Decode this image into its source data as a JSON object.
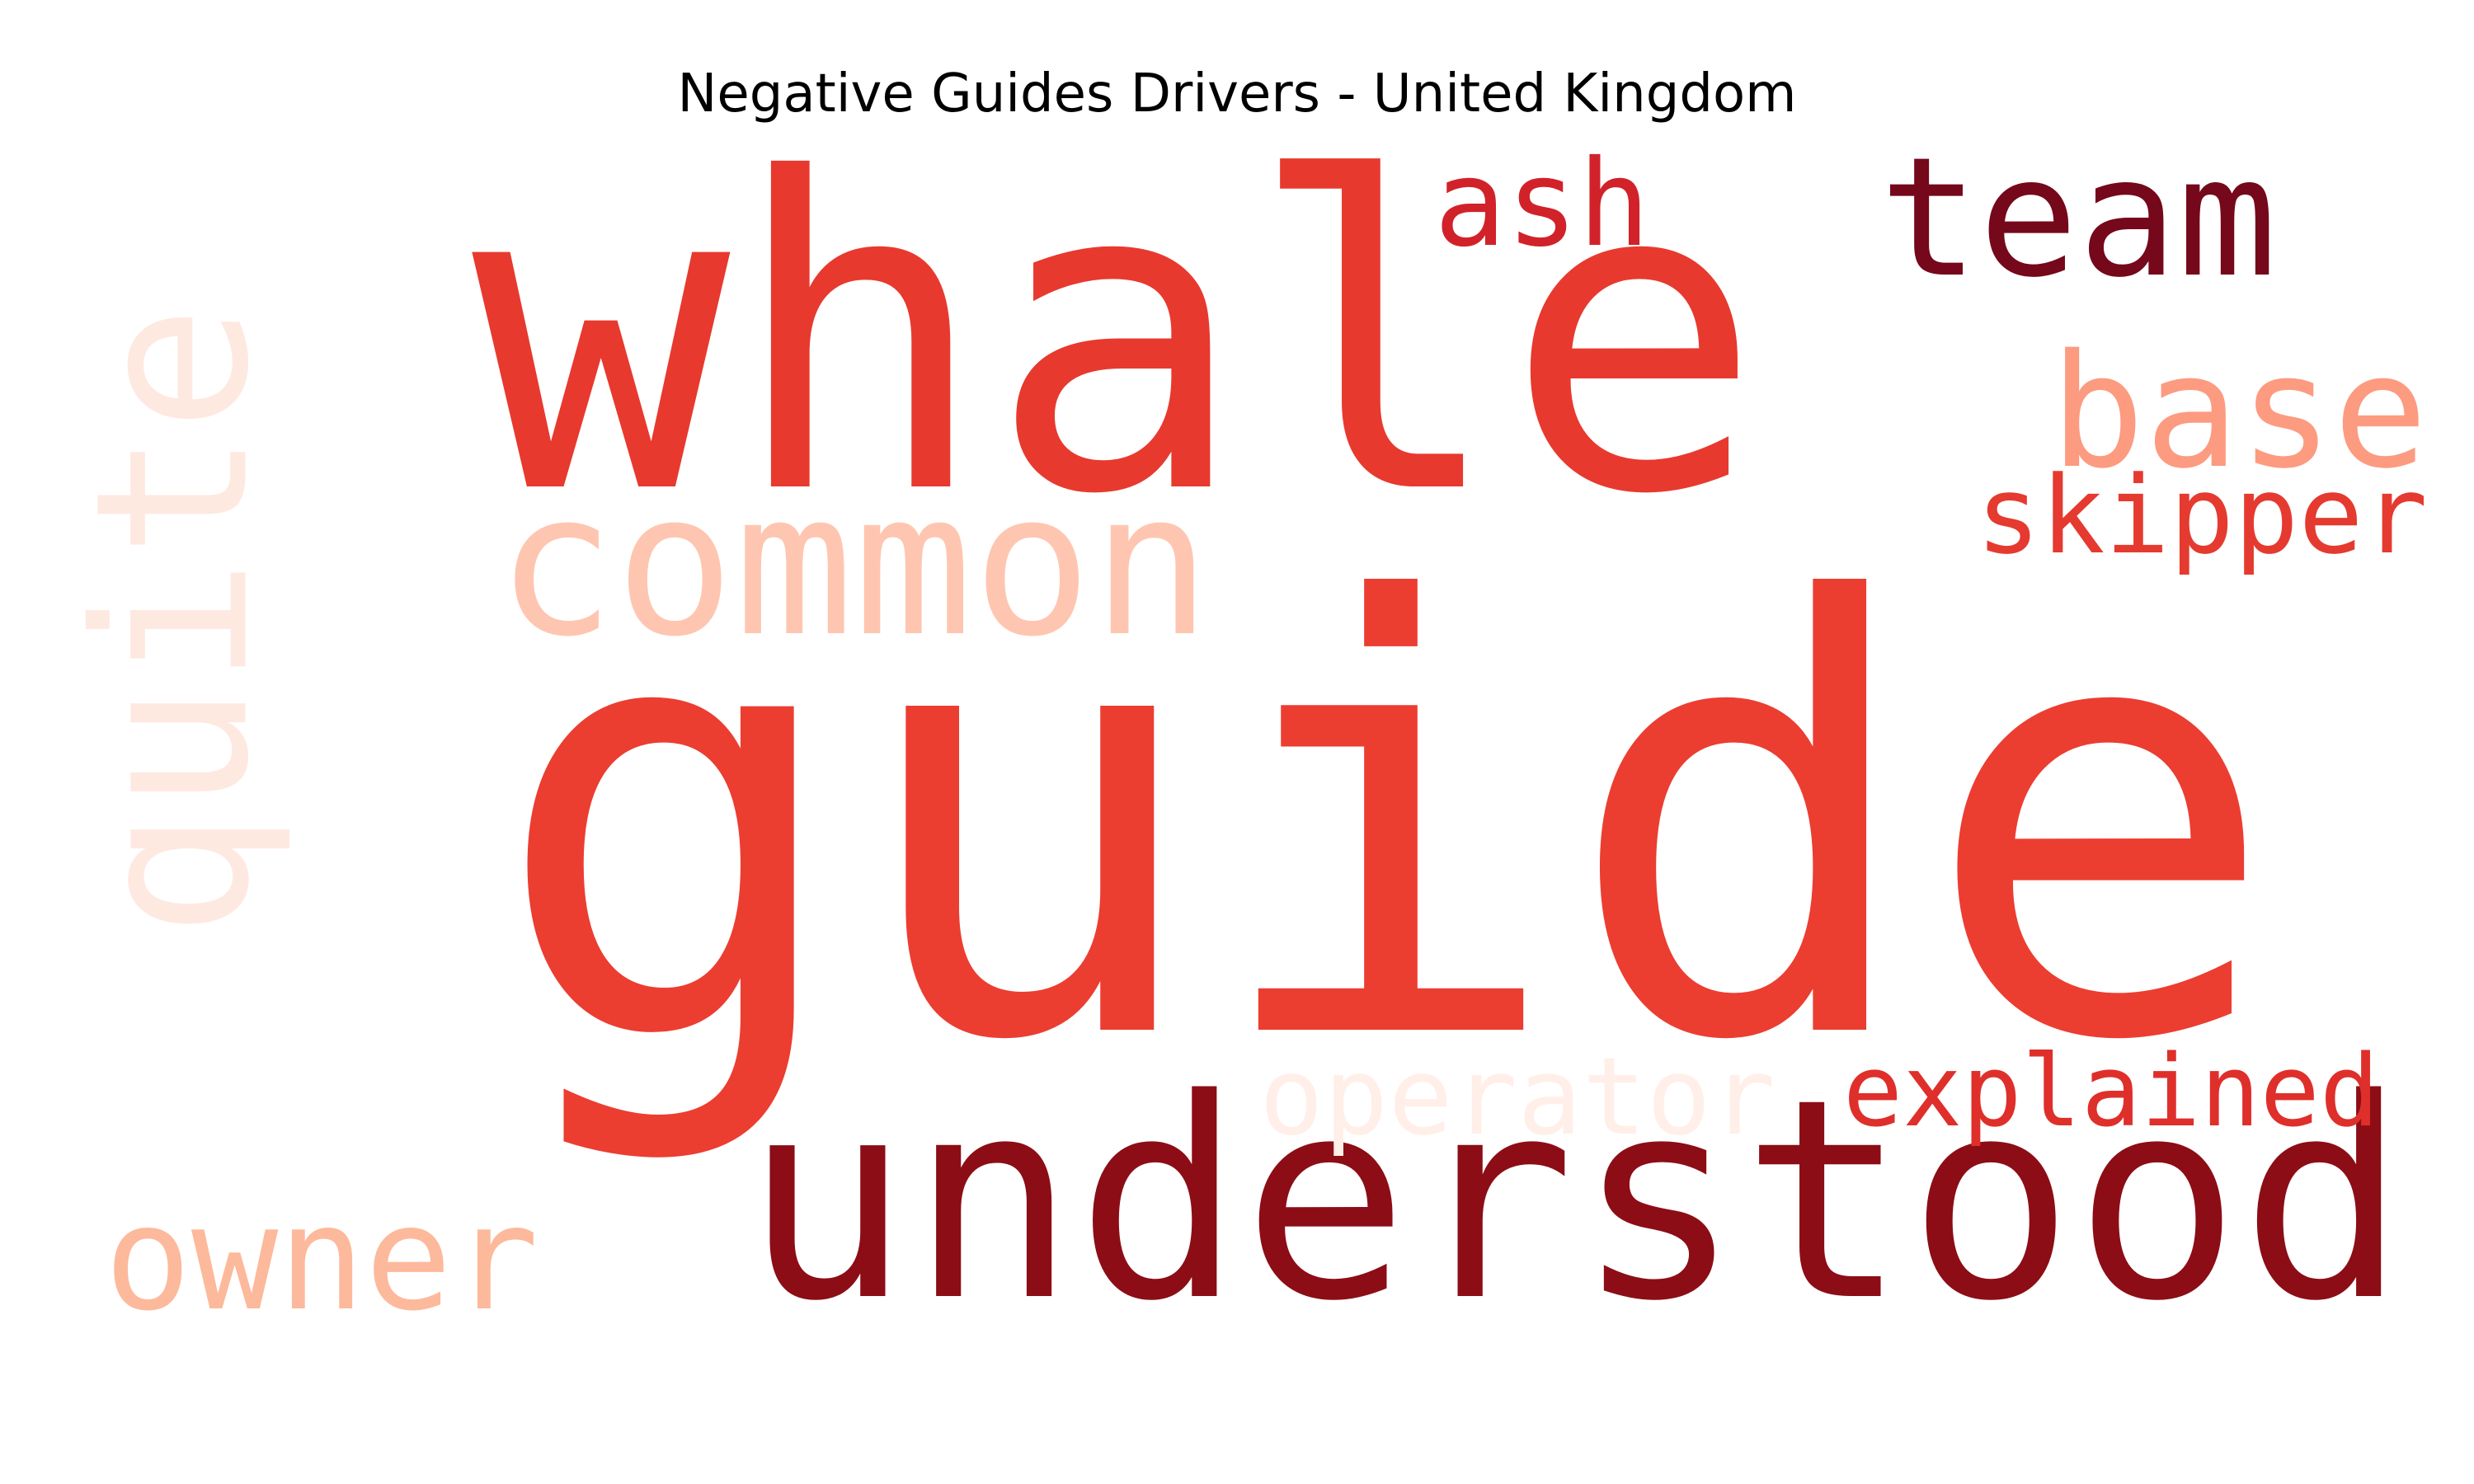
{
  "title": "Negative Guides Drivers - United Kingdom",
  "words": [
    {
      "text": "guide",
      "color": "#ec3d31",
      "orientation": "horizontal"
    },
    {
      "text": "whale",
      "color": "#e8392e",
      "orientation": "horizontal"
    },
    {
      "text": "understood",
      "color": "#8c0d16",
      "orientation": "horizontal"
    },
    {
      "text": "quite",
      "color": "#fee9e1",
      "orientation": "vertical"
    },
    {
      "text": "common",
      "color": "#fec6b0",
      "orientation": "horizontal"
    },
    {
      "text": "team",
      "color": "#75081a",
      "orientation": "horizontal"
    },
    {
      "text": "base",
      "color": "#fc9b80",
      "orientation": "horizontal"
    },
    {
      "text": "ash",
      "color": "#d1222a",
      "orientation": "horizontal"
    },
    {
      "text": "skipper",
      "color": "#e53a2f",
      "orientation": "horizontal"
    },
    {
      "text": "operator",
      "color": "#ffefe8",
      "orientation": "horizontal"
    },
    {
      "text": "explained",
      "color": "#df2f2b",
      "orientation": "horizontal"
    },
    {
      "text": "owner",
      "color": "#fdb99b",
      "orientation": "horizontal"
    }
  ]
}
